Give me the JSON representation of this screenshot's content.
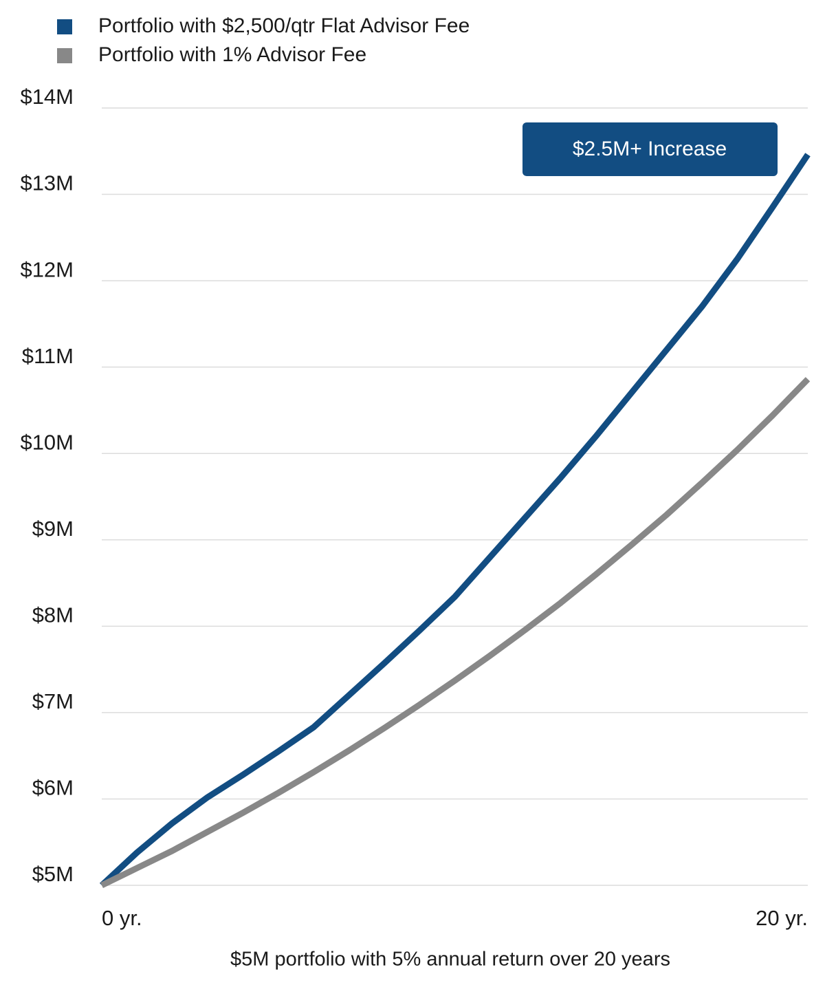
{
  "chart_data": {
    "type": "line",
    "x_label": "$5M portfolio with 5% annual return over 20 years",
    "annotation": "$2.5M+ Increase",
    "x": [
      0,
      1,
      2,
      3,
      4,
      5,
      6,
      7,
      8,
      9,
      10,
      11,
      12,
      13,
      14,
      15,
      16,
      17,
      18,
      19,
      20
    ],
    "xlim": [
      0,
      20
    ],
    "xticks": [
      {
        "value": 0,
        "label": "0 yr."
      },
      {
        "value": 20,
        "label": "20 yr."
      }
    ],
    "ylim": [
      5000000,
      14000000
    ],
    "yticks": [
      {
        "value": 5000000,
        "label": "$5M"
      },
      {
        "value": 6000000,
        "label": "$6M"
      },
      {
        "value": 7000000,
        "label": "$7M"
      },
      {
        "value": 8000000,
        "label": "$8M"
      },
      {
        "value": 9000000,
        "label": "$9M"
      },
      {
        "value": 10000000,
        "label": "$10M"
      },
      {
        "value": 11000000,
        "label": "$11M"
      },
      {
        "value": 12000000,
        "label": "$12M"
      },
      {
        "value": 13000000,
        "label": "$13M"
      },
      {
        "value": 14000000,
        "label": "$14M"
      }
    ],
    "grid": true,
    "legend": "top-left",
    "series": [
      {
        "name": "Portfolio with $2,500/qtr Flat Advisor Fee",
        "color": "#124d82",
        "values": [
          5000000,
          5380000,
          5720000,
          6020000,
          6280000,
          6550000,
          6830000,
          7200000,
          7570000,
          7950000,
          8340000,
          8800000,
          9260000,
          9720000,
          10200000,
          10700000,
          11200000,
          11700000,
          12250000,
          12850000,
          13460000
        ]
      },
      {
        "name": "Portfolio with 1% Advisor Fee",
        "color": "#888888",
        "values": [
          5000000,
          5200000,
          5400000,
          5620000,
          5840000,
          6070000,
          6310000,
          6560000,
          6820000,
          7090000,
          7370000,
          7660000,
          7960000,
          8270000,
          8600000,
          8940000,
          9290000,
          9660000,
          10040000,
          10440000,
          10860000
        ]
      }
    ]
  }
}
